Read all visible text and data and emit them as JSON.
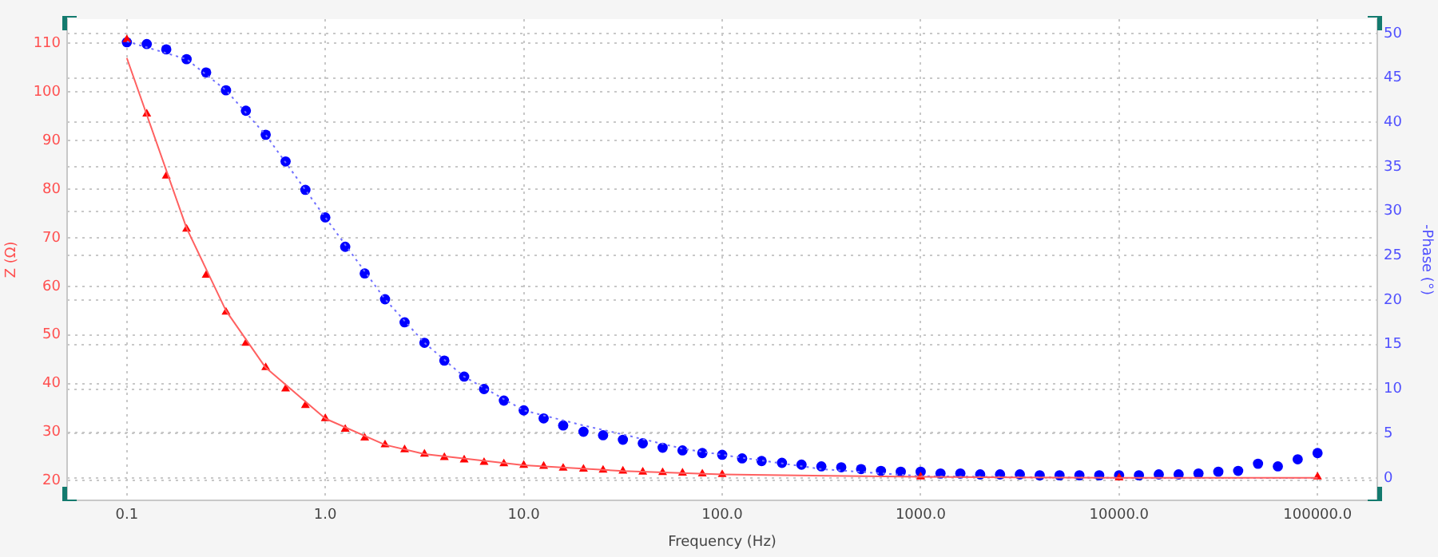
{
  "chart_data": {
    "type": "scatter",
    "xlabel": "Frequency (Hz)",
    "ylabel": "Z (Ω)",
    "y2label": "-Phase (°)",
    "log": "x",
    "grid": true,
    "legend": false,
    "xlim": [
      0.05,
      200000
    ],
    "xticks": [
      0.1,
      {
        "value": 1,
        "label": "1.0"
      },
      {
        "value": 10,
        "label": "10.0"
      },
      {
        "value": 100,
        "label": "100.0"
      },
      {
        "value": 1000,
        "label": "1000.0"
      },
      {
        "value": 10000,
        "label": "10000.0"
      },
      {
        "value": 100000,
        "label": "100000.0"
      }
    ],
    "ylim": [
      16,
      115
    ],
    "yticks": [
      20,
      30,
      40,
      50,
      60,
      70,
      80,
      90,
      100,
      110
    ],
    "y2lim": [
      -2.5,
      51.6
    ],
    "y2ticks": [
      0,
      5,
      10,
      15,
      20,
      25,
      30,
      35,
      40,
      45,
      50
    ],
    "series": [
      {
        "type": "line",
        "color": "#ff6060",
        "marker": "none",
        "line_style": "solid",
        "x": [
          0.1,
          0.2,
          0.316,
          0.5,
          1,
          2,
          3.16,
          10,
          31.6,
          100,
          1000,
          10000,
          100000
        ],
        "values": [
          107,
          72,
          55,
          43.3,
          32.8,
          27.4,
          25.5,
          23.2,
          22.0,
          21.3,
          20.8,
          20.6,
          20.6
        ]
      },
      {
        "type": "line",
        "color": "#7070ff",
        "marker": "none",
        "line_style": "dotted",
        "axis": "y2",
        "x": [
          0.1,
          0.2,
          0.316,
          0.5,
          1,
          2,
          3.16,
          5,
          10,
          20,
          31.6,
          63,
          100,
          316,
          1000,
          10000,
          100000
        ],
        "values": [
          49.1,
          47.1,
          43.6,
          38.6,
          29.3,
          20.1,
          15.2,
          11.4,
          7.6,
          5.9,
          4.9,
          3.3,
          2.6,
          1.0,
          0.2,
          0.0,
          0.0
        ]
      },
      {
        "color": "#ff0000",
        "marker": "triangle",
        "x": [
          0.1,
          0.126,
          0.158,
          0.2,
          0.251,
          0.316,
          0.398,
          0.501,
          0.631,
          0.794,
          1,
          1.26,
          1.58,
          2,
          2.51,
          3.16,
          3.98,
          5.01,
          6.31,
          7.94,
          10,
          12.6,
          15.8,
          20,
          25.1,
          31.6,
          39.8,
          50.1,
          63.1,
          79.4,
          100,
          1000,
          10000,
          100000
        ],
        "values": [
          110.8,
          95.5,
          82.7,
          71.8,
          62.3,
          54.7,
          48.3,
          43.3,
          38.9,
          35.5,
          32.8,
          30.6,
          28.8,
          27.4,
          26.4,
          25.5,
          24.8,
          24.3,
          23.8,
          23.5,
          23.2,
          23.0,
          22.6,
          22.4,
          22.2,
          22.0,
          21.8,
          21.7,
          21.6,
          21.4,
          21.3,
          20.8,
          20.6,
          20.8
        ]
      },
      {
        "color": "#0000ff",
        "marker": "circle",
        "axis": "y2",
        "x": [
          0.1,
          0.126,
          0.158,
          0.2,
          0.251,
          0.316,
          0.398,
          0.501,
          0.631,
          0.794,
          1,
          1.26,
          1.58,
          2,
          2.51,
          3.16,
          3.98,
          5.01,
          6.31,
          7.94,
          10,
          12.6,
          15.8,
          20,
          25.1,
          31.6,
          39.8,
          50.1,
          63.1,
          79.4,
          100,
          126,
          158,
          200,
          251,
          316,
          398,
          501,
          631,
          794,
          1000,
          1259,
          1585,
          1995,
          2512,
          3162,
          3981,
          5012,
          6310,
          7943,
          10000,
          12589,
          15849,
          19953,
          25119,
          31623,
          39811,
          50119,
          63096,
          79433,
          100000
        ],
        "values": [
          49.0,
          48.8,
          48.2,
          47.1,
          45.6,
          43.6,
          41.3,
          38.6,
          35.6,
          32.4,
          29.3,
          26.0,
          23.0,
          20.1,
          17.5,
          15.2,
          13.2,
          11.4,
          10.0,
          8.7,
          7.6,
          6.7,
          5.9,
          5.2,
          4.8,
          4.3,
          3.9,
          3.4,
          3.1,
          2.8,
          2.6,
          2.2,
          1.9,
          1.7,
          1.5,
          1.3,
          1.2,
          1.0,
          0.8,
          0.7,
          0.7,
          0.5,
          0.5,
          0.4,
          0.4,
          0.4,
          0.3,
          0.3,
          0.3,
          0.3,
          0.3,
          0.3,
          0.4,
          0.4,
          0.5,
          0.7,
          0.8,
          1.6,
          1.3,
          2.1,
          2.8
        ]
      }
    ]
  }
}
